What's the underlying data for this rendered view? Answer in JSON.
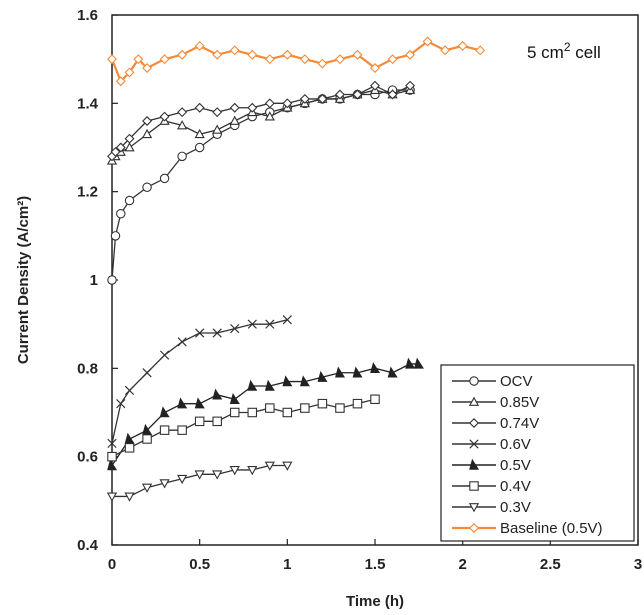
{
  "chart_data": {
    "type": "line",
    "title": "",
    "xlabel": "Time (h)",
    "ylabel": "Current Density (A/cm²)",
    "xlim": [
      0,
      3
    ],
    "ylim": [
      0.4,
      1.6
    ],
    "x_ticks": [
      "0",
      "0.5",
      "1",
      "1.5",
      "2",
      "2.5",
      "3"
    ],
    "y_ticks": [
      "0.4",
      "0.6",
      "0.8",
      "1",
      "1.2",
      "1.4",
      "1.6"
    ],
    "annotation": {
      "text": "5 cm",
      "sup": "2",
      "suffix": " cell"
    },
    "grid": false,
    "legend_position": "bottom-right",
    "series": [
      {
        "name": "OCV",
        "color": "#333333",
        "marker": "circle",
        "x": [
          0,
          0.02,
          0.05,
          0.1,
          0.2,
          0.3,
          0.4,
          0.5,
          0.6,
          0.7,
          0.8,
          0.9,
          1.0,
          1.1,
          1.2,
          1.3,
          1.4,
          1.5,
          1.6,
          1.7
        ],
        "y": [
          1.0,
          1.1,
          1.15,
          1.18,
          1.21,
          1.23,
          1.28,
          1.3,
          1.33,
          1.35,
          1.37,
          1.38,
          1.39,
          1.4,
          1.41,
          1.41,
          1.42,
          1.42,
          1.43,
          1.43
        ]
      },
      {
        "name": "0.85V",
        "color": "#333333",
        "marker": "triangle-up",
        "x": [
          0,
          0.02,
          0.05,
          0.1,
          0.2,
          0.3,
          0.4,
          0.5,
          0.6,
          0.7,
          0.8,
          0.9,
          1.0,
          1.1,
          1.2,
          1.3,
          1.4,
          1.5,
          1.6,
          1.7
        ],
        "y": [
          1.27,
          1.28,
          1.29,
          1.3,
          1.33,
          1.36,
          1.35,
          1.33,
          1.34,
          1.36,
          1.38,
          1.37,
          1.39,
          1.4,
          1.41,
          1.41,
          1.42,
          1.43,
          1.42,
          1.43
        ]
      },
      {
        "name": "0.74V",
        "color": "#333333",
        "marker": "diamond",
        "x": [
          0,
          0.02,
          0.05,
          0.1,
          0.2,
          0.3,
          0.4,
          0.5,
          0.6,
          0.7,
          0.8,
          0.9,
          1.0,
          1.1,
          1.2,
          1.3,
          1.4,
          1.5,
          1.6,
          1.7
        ],
        "y": [
          1.28,
          1.29,
          1.3,
          1.32,
          1.36,
          1.37,
          1.38,
          1.39,
          1.38,
          1.39,
          1.39,
          1.4,
          1.4,
          1.41,
          1.41,
          1.42,
          1.42,
          1.44,
          1.42,
          1.44
        ]
      },
      {
        "name": "0.6V",
        "color": "#333333",
        "marker": "x",
        "x": [
          0,
          0.05,
          0.1,
          0.2,
          0.3,
          0.4,
          0.5,
          0.6,
          0.7,
          0.8,
          0.9,
          1.0
        ],
        "y": [
          0.63,
          0.72,
          0.75,
          0.79,
          0.83,
          0.86,
          0.88,
          0.88,
          0.89,
          0.9,
          0.9,
          0.91
        ]
      },
      {
        "name": "0.5V",
        "color": "#222222",
        "marker": "triangle-filled",
        "x": [
          0,
          0.1,
          0.2,
          0.3,
          0.4,
          0.5,
          0.6,
          0.7,
          0.8,
          0.9,
          1.0,
          1.1,
          1.2,
          1.3,
          1.4,
          1.5,
          1.6,
          1.7,
          1.75
        ],
        "y": [
          0.58,
          0.64,
          0.66,
          0.7,
          0.72,
          0.72,
          0.74,
          0.73,
          0.76,
          0.76,
          0.77,
          0.77,
          0.78,
          0.79,
          0.79,
          0.8,
          0.79,
          0.81,
          0.81
        ]
      },
      {
        "name": "0.4V",
        "color": "#333333",
        "marker": "square",
        "x": [
          0,
          0.1,
          0.2,
          0.3,
          0.4,
          0.5,
          0.6,
          0.7,
          0.8,
          0.9,
          1.0,
          1.1,
          1.2,
          1.3,
          1.4,
          1.5
        ],
        "y": [
          0.6,
          0.62,
          0.64,
          0.66,
          0.66,
          0.68,
          0.68,
          0.7,
          0.7,
          0.71,
          0.7,
          0.71,
          0.72,
          0.71,
          0.72,
          0.73
        ]
      },
      {
        "name": "0.3V",
        "color": "#333333",
        "marker": "triangle-down",
        "x": [
          0,
          0.1,
          0.2,
          0.3,
          0.4,
          0.5,
          0.6,
          0.7,
          0.8,
          0.9,
          1.0
        ],
        "y": [
          0.51,
          0.51,
          0.53,
          0.54,
          0.55,
          0.56,
          0.56,
          0.57,
          0.57,
          0.58,
          0.58
        ]
      },
      {
        "name": "Baseline (0.5V)",
        "color": "#f58a3a",
        "marker": "diamond-orange",
        "x": [
          0,
          0.05,
          0.1,
          0.15,
          0.2,
          0.3,
          0.4,
          0.5,
          0.6,
          0.7,
          0.8,
          0.9,
          1.0,
          1.1,
          1.2,
          1.3,
          1.4,
          1.5,
          1.6,
          1.7,
          1.8,
          1.9,
          2.0,
          2.1
        ],
        "y": [
          1.5,
          1.45,
          1.47,
          1.5,
          1.48,
          1.5,
          1.51,
          1.53,
          1.51,
          1.52,
          1.51,
          1.5,
          1.51,
          1.5,
          1.49,
          1.5,
          1.51,
          1.48,
          1.5,
          1.51,
          1.54,
          1.52,
          1.53,
          1.52
        ]
      }
    ]
  }
}
